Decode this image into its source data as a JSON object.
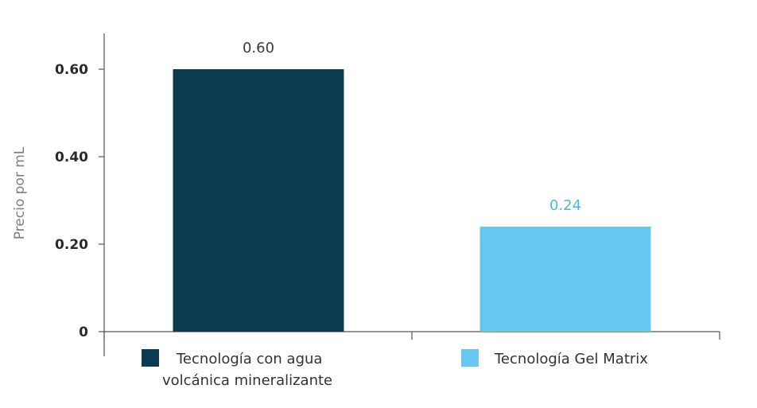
{
  "chart_data": {
    "type": "bar",
    "categories": [
      "Tecnología con agua volcánica mineralizante",
      "Tecnología Gel Matrix"
    ],
    "values": [
      0.6,
      0.24
    ],
    "value_labels": [
      "0.60",
      "0.24"
    ],
    "ylabel": "Precio por mL",
    "xlabel": "",
    "ylim": [
      0,
      0.6
    ],
    "yticks": [
      0,
      0.2,
      0.4,
      0.6
    ],
    "ytick_labels": [
      "0",
      "0.20",
      "0.40",
      "0.60"
    ],
    "grid": false,
    "legend_position": "bottom",
    "legend": [
      {
        "lines": [
          "Tecnología con agua",
          "volcánica mineralizante"
        ]
      },
      {
        "lines": [
          "Tecnología Gel Matrix"
        ]
      }
    ],
    "colors": [
      "#0b3c52",
      "#66c8f0"
    ],
    "label_colors": [
      "#3a3a3a",
      "#4fb4e3"
    ],
    "axis_color": "#555555"
  }
}
